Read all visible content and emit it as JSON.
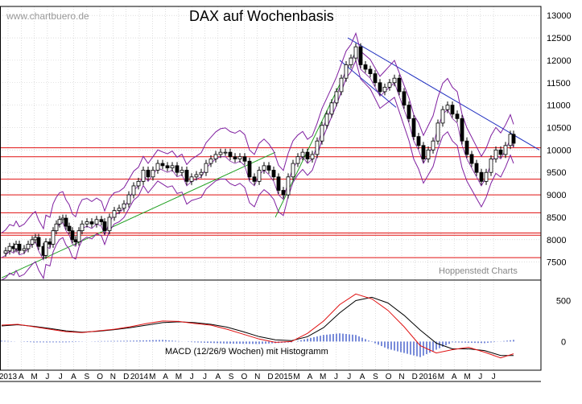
{
  "title": "DAX auf Wochenbasis",
  "watermark": "www.chartbuero.de",
  "source_label": "Hoppenstedt Charts",
  "macd_label": "MACD (12/26/9 Wochen) mit Histogramm",
  "chart_data": [
    {
      "type": "candlestick",
      "title": "DAX auf Wochenbasis",
      "x_axis": {
        "labels": [
          "2013",
          "A",
          "M",
          "J",
          "J",
          "A",
          "S",
          "O",
          "N",
          "D",
          "2014",
          "M",
          "A",
          "M",
          "J",
          "J",
          "A",
          "S",
          "O",
          "N",
          "D",
          "2015",
          "M",
          "A",
          "M",
          "J",
          "J",
          "A",
          "S",
          "O",
          "N",
          "D",
          "2016",
          "M",
          "A",
          "M",
          "J",
          "J"
        ]
      },
      "y_axis": {
        "ticks": [
          7500,
          8000,
          8500,
          9000,
          9500,
          10000,
          10500,
          11000,
          11500,
          12000,
          12500,
          13000
        ],
        "range": [
          7100,
          13200
        ]
      },
      "horizontal_levels": [
        7600,
        8100,
        8150,
        8600,
        9000,
        9350,
        9850,
        10050
      ],
      "series": [
        {
          "name": "DAX weekly closes",
          "points": [
            [
              0,
              7700
            ],
            [
              5,
              7750
            ],
            [
              10,
              7850
            ],
            [
              15,
              7800
            ],
            [
              18,
              7900
            ],
            [
              22,
              7760
            ],
            [
              28,
              7800
            ],
            [
              33,
              7900
            ],
            [
              38,
              8000
            ],
            [
              42,
              8050
            ],
            [
              46,
              7850
            ],
            [
              52,
              7650
            ],
            [
              55,
              7950
            ],
            [
              60,
              7900
            ],
            [
              64,
              8200
            ],
            [
              68,
              8350
            ],
            [
              72,
              8450
            ],
            [
              76,
              8480
            ],
            [
              80,
              8300
            ],
            [
              84,
              8200
            ],
            [
              88,
              8000
            ],
            [
              92,
              7950
            ],
            [
              96,
              8200
            ],
            [
              100,
              8350
            ],
            [
              106,
              8400
            ],
            [
              112,
              8350
            ],
            [
              118,
              8450
            ],
            [
              124,
              8400
            ],
            [
              128,
              8200
            ],
            [
              134,
              8500
            ],
            [
              140,
              8650
            ],
            [
              146,
              8700
            ],
            [
              152,
              8800
            ],
            [
              158,
              9000
            ],
            [
              164,
              9200
            ],
            [
              170,
              9300
            ],
            [
              176,
              9550
            ],
            [
              182,
              9400
            ],
            [
              188,
              9550
            ],
            [
              194,
              9700
            ],
            [
              200,
              9650
            ],
            [
              206,
              9600
            ],
            [
              212,
              9650
            ],
            [
              218,
              9500
            ],
            [
              224,
              9550
            ],
            [
              230,
              9300
            ],
            [
              236,
              9400
            ],
            [
              242,
              9450
            ],
            [
              248,
              9500
            ],
            [
              254,
              9700
            ],
            [
              260,
              9800
            ],
            [
              266,
              9900
            ],
            [
              272,
              9950
            ],
            [
              278,
              9950
            ],
            [
              284,
              9850
            ],
            [
              290,
              9800
            ],
            [
              296,
              9850
            ],
            [
              302,
              9750
            ],
            [
              308,
              9400
            ],
            [
              314,
              9300
            ],
            [
              320,
              9550
            ],
            [
              326,
              9650
            ],
            [
              332,
              9550
            ],
            [
              338,
              9400
            ],
            [
              344,
              9100
            ],
            [
              350,
              9000
            ],
            [
              356,
              9400
            ],
            [
              362,
              9700
            ],
            [
              368,
              9850
            ],
            [
              374,
              9950
            ],
            [
              380,
              9800
            ],
            [
              386,
              9900
            ],
            [
              392,
              10200
            ],
            [
              398,
              10550
            ],
            [
              404,
              10800
            ],
            [
              410,
              11050
            ],
            [
              416,
              11300
            ],
            [
              422,
              11600
            ],
            [
              428,
              11900
            ],
            [
              434,
              12050
            ],
            [
              440,
              12300
            ],
            [
              446,
              11900
            ],
            [
              452,
              11800
            ],
            [
              458,
              11700
            ],
            [
              464,
              11500
            ],
            [
              470,
              11300
            ],
            [
              476,
              11400
            ],
            [
              482,
              11500
            ],
            [
              488,
              11600
            ],
            [
              494,
              11300
            ],
            [
              500,
              11000
            ],
            [
              506,
              10700
            ],
            [
              512,
              10300
            ],
            [
              518,
              10100
            ],
            [
              524,
              9800
            ],
            [
              530,
              10000
            ],
            [
              536,
              10200
            ],
            [
              542,
              10600
            ],
            [
              548,
              10900
            ],
            [
              554,
              11000
            ],
            [
              560,
              10800
            ],
            [
              566,
              10700
            ],
            [
              572,
              10200
            ],
            [
              578,
              9900
            ],
            [
              584,
              9700
            ],
            [
              590,
              9500
            ],
            [
              596,
              9300
            ],
            [
              602,
              9500
            ],
            [
              608,
              9800
            ],
            [
              614,
              10000
            ],
            [
              620,
              9900
            ],
            [
              626,
              10100
            ],
            [
              632,
              10350
            ],
            [
              636,
              10150
            ]
          ]
        }
      ]
    },
    {
      "type": "line",
      "title": "MACD (12/26/9 Wochen) mit Histogramm",
      "y_axis": {
        "ticks": [
          0,
          500
        ],
        "range": [
          -350,
          750
        ]
      },
      "series": [
        {
          "name": "MACD",
          "points": [
            [
              0,
              200
            ],
            [
              20,
              210
            ],
            [
              40,
              180
            ],
            [
              60,
              150
            ],
            [
              80,
              120
            ],
            [
              100,
              110
            ],
            [
              120,
              130
            ],
            [
              140,
              150
            ],
            [
              160,
              180
            ],
            [
              180,
              220
            ],
            [
              200,
              250
            ],
            [
              220,
              245
            ],
            [
              240,
              220
            ],
            [
              260,
              200
            ],
            [
              280,
              150
            ],
            [
              300,
              90
            ],
            [
              320,
              30
            ],
            [
              340,
              -10
            ],
            [
              360,
              0
            ],
            [
              380,
              100
            ],
            [
              400,
              250
            ],
            [
              420,
              450
            ],
            [
              440,
              580
            ],
            [
              460,
              520
            ],
            [
              480,
              380
            ],
            [
              500,
              180
            ],
            [
              520,
              -50
            ],
            [
              540,
              -140
            ],
            [
              560,
              -100
            ],
            [
              580,
              -70
            ],
            [
              600,
              -130
            ],
            [
              620,
              -200
            ],
            [
              636,
              -150
            ]
          ]
        },
        {
          "name": "Signal",
          "points": [
            [
              0,
              190
            ],
            [
              20,
              205
            ],
            [
              40,
              185
            ],
            [
              60,
              160
            ],
            [
              80,
              130
            ],
            [
              100,
              115
            ],
            [
              120,
              125
            ],
            [
              140,
              145
            ],
            [
              160,
              170
            ],
            [
              180,
              200
            ],
            [
              200,
              230
            ],
            [
              220,
              240
            ],
            [
              240,
              230
            ],
            [
              260,
              210
            ],
            [
              280,
              175
            ],
            [
              300,
              120
            ],
            [
              320,
              60
            ],
            [
              340,
              20
            ],
            [
              360,
              10
            ],
            [
              380,
              60
            ],
            [
              400,
              170
            ],
            [
              420,
              350
            ],
            [
              440,
              500
            ],
            [
              460,
              540
            ],
            [
              480,
              470
            ],
            [
              500,
              320
            ],
            [
              520,
              140
            ],
            [
              540,
              -20
            ],
            [
              560,
              -90
            ],
            [
              580,
              -90
            ],
            [
              600,
              -110
            ],
            [
              620,
              -170
            ],
            [
              636,
              -170
            ]
          ]
        },
        {
          "name": "Histogramm",
          "points": [
            [
              0,
              10
            ],
            [
              40,
              -10
            ],
            [
              80,
              -10
            ],
            [
              120,
              5
            ],
            [
              160,
              10
            ],
            [
              200,
              20
            ],
            [
              240,
              -10
            ],
            [
              280,
              -25
            ],
            [
              320,
              -30
            ],
            [
              360,
              -10
            ],
            [
              400,
              80
            ],
            [
              420,
              100
            ],
            [
              440,
              80
            ],
            [
              480,
              -90
            ],
            [
              520,
              -190
            ],
            [
              560,
              -10
            ],
            [
              600,
              -20
            ],
            [
              636,
              20
            ]
          ]
        }
      ]
    }
  ]
}
